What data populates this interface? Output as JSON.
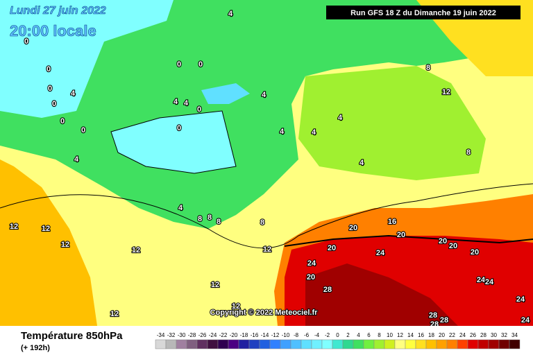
{
  "header": {
    "date": "Lundi 27 juin 2022",
    "time": "20:00 locale",
    "run": "Run GFS 18 Z du Dimanche 19 juin 2022"
  },
  "copyright": "Copyright © 2022 Meteociel.fr",
  "footer": {
    "title": "Température 850hPa",
    "lead": "(+ 192h)"
  },
  "contour_labels": [
    "4",
    "0",
    "0",
    "0",
    "0",
    "4",
    "0",
    "0",
    "4",
    "4",
    "0",
    "4",
    "0",
    "0",
    "0",
    "4",
    "4",
    "4",
    "4",
    "4",
    "8",
    "12",
    "8",
    "4",
    "8",
    "8",
    "8",
    "8",
    "12",
    "12",
    "12",
    "12",
    "12",
    "12",
    "12",
    "12",
    "16",
    "20",
    "20",
    "20",
    "20",
    "20",
    "20",
    "24",
    "24",
    "20",
    "28",
    "24",
    "24",
    "24",
    "28",
    "28",
    "28",
    "24"
  ],
  "scale": [
    {
      "value": -34,
      "color": "#d8d8d8"
    },
    {
      "value": -32,
      "color": "#b8b8b8"
    },
    {
      "value": -30,
      "color": "#a080a0"
    },
    {
      "value": -28,
      "color": "#806080"
    },
    {
      "value": -26,
      "color": "#603060"
    },
    {
      "value": -24,
      "color": "#401040"
    },
    {
      "value": -22,
      "color": "#300050"
    },
    {
      "value": -20,
      "color": "#4b0082"
    },
    {
      "value": -18,
      "color": "#2020a0"
    },
    {
      "value": -16,
      "color": "#2040c0"
    },
    {
      "value": -14,
      "color": "#2060e0"
    },
    {
      "value": -12,
      "color": "#3080ff"
    },
    {
      "value": -10,
      "color": "#40a0ff"
    },
    {
      "value": -8,
      "color": "#50c0ff"
    },
    {
      "value": -6,
      "color": "#60e0ff"
    },
    {
      "value": -4,
      "color": "#70f0ff"
    },
    {
      "value": -2,
      "color": "#80ffff"
    },
    {
      "value": 0,
      "color": "#40e8d0"
    },
    {
      "value": 2,
      "color": "#30d890"
    },
    {
      "value": 4,
      "color": "#40e060"
    },
    {
      "value": 6,
      "color": "#70f040"
    },
    {
      "value": 8,
      "color": "#a0f030"
    },
    {
      "value": 10,
      "color": "#d0f020"
    },
    {
      "value": 12,
      "color": "#ffff80"
    },
    {
      "value": 14,
      "color": "#ffff40"
    },
    {
      "value": 16,
      "color": "#ffe020"
    },
    {
      "value": 18,
      "color": "#ffc000"
    },
    {
      "value": 20,
      "color": "#ffa000"
    },
    {
      "value": 22,
      "color": "#ff8000"
    },
    {
      "value": 24,
      "color": "#ff4000"
    },
    {
      "value": 26,
      "color": "#e00000"
    },
    {
      "value": 28,
      "color": "#c00000"
    },
    {
      "value": 30,
      "color": "#a00000"
    },
    {
      "value": 32,
      "color": "#700000"
    },
    {
      "value": 34,
      "color": "#400000"
    }
  ]
}
